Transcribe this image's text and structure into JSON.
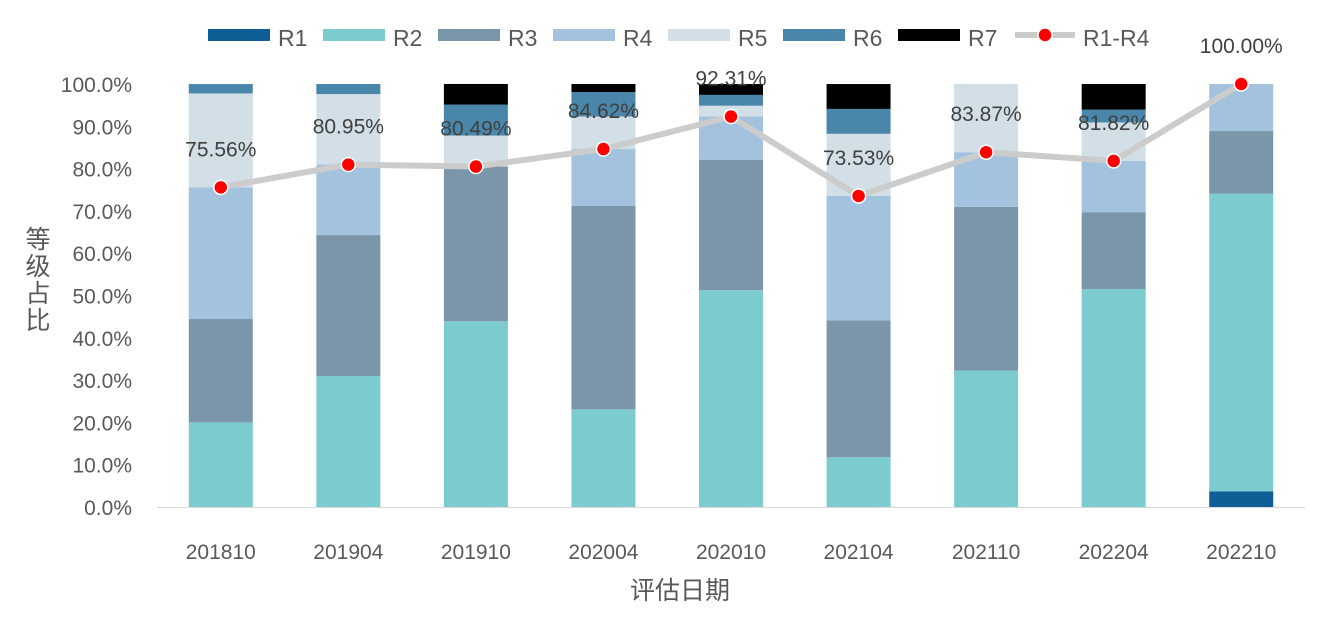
{
  "chart_data": {
    "type": "bar",
    "stacked": true,
    "title": "",
    "xlabel": "评估日期",
    "ylabel": "等级占比",
    "ylim": [
      0,
      100
    ],
    "yticks": [
      "0.0%",
      "10.0%",
      "20.0%",
      "30.0%",
      "40.0%",
      "50.0%",
      "60.0%",
      "70.0%",
      "80.0%",
      "90.0%",
      "100.0%"
    ],
    "categories": [
      "201810",
      "201904",
      "201910",
      "202004",
      "202010",
      "202104",
      "202110",
      "202204",
      "202210"
    ],
    "series": [
      {
        "name": "R1",
        "color": "#0e5f96",
        "values": [
          0,
          0,
          0,
          0,
          0,
          0,
          0,
          0,
          3.7
        ]
      },
      {
        "name": "R2",
        "color": "#7ccbcf",
        "values": [
          20.0,
          30.95,
          43.9,
          23.08,
          51.28,
          11.76,
          32.26,
          51.52,
          70.37
        ]
      },
      {
        "name": "R3",
        "color": "#7a96a8",
        "values": [
          24.44,
          33.33,
          36.59,
          48.08,
          30.77,
          32.35,
          38.71,
          18.18,
          14.81
        ]
      },
      {
        "name": "R4",
        "color": "#a2c2de",
        "values": [
          31.11,
          16.67,
          0,
          13.46,
          10.26,
          29.41,
          12.9,
          12.12,
          11.11
        ]
      },
      {
        "name": "R5",
        "color": "#d2dfe6",
        "values": [
          22.22,
          16.67,
          7.32,
          7.69,
          2.56,
          14.71,
          16.13,
          9.09,
          0
        ]
      },
      {
        "name": "R6",
        "color": "#4a86aa",
        "values": [
          2.22,
          2.38,
          7.32,
          5.77,
          2.56,
          5.88,
          0,
          3.03,
          0
        ]
      },
      {
        "name": "R7",
        "color": "#000000",
        "values": [
          0,
          0,
          4.88,
          1.92,
          2.56,
          5.88,
          0,
          6.06,
          0
        ]
      }
    ],
    "line": {
      "name": "R1-R4",
      "color": "#cccccc",
      "marker_color": "#ff0000",
      "values": [
        75.56,
        80.95,
        80.49,
        84.62,
        92.31,
        73.53,
        83.87,
        81.82,
        100.0
      ],
      "labels": [
        "75.56%",
        "80.95%",
        "80.49%",
        "84.62%",
        "92.31%",
        "73.53%",
        "83.87%",
        "81.82%",
        "100.00%"
      ]
    },
    "legend_position": "top",
    "grid": false
  }
}
